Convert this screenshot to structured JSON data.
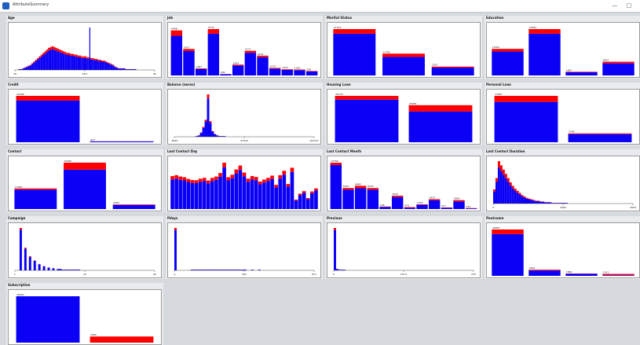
{
  "window": {
    "title": "AttributeSummary"
  },
  "colors": {
    "blue": "#0b00f5",
    "red": "#ff0000",
    "background": "#d6d9dd",
    "panel": "#e9ebee"
  },
  "panels": [
    {
      "title": "Age",
      "chart_data": {
        "type": "histogram",
        "x_ticks": [
          "18",
          "56.5",
          "95"
        ],
        "x_range": [
          18,
          95
        ],
        "values": [
          0,
          0,
          1,
          1,
          2,
          3,
          4,
          5,
          6,
          8,
          10,
          12,
          14,
          16,
          18,
          20,
          22,
          24,
          26,
          27,
          28,
          27,
          26,
          25,
          24,
          23,
          22,
          21,
          20,
          20,
          19,
          19,
          18,
          18,
          17,
          17,
          16,
          16,
          16,
          15,
          15,
          14,
          14,
          13,
          13,
          12,
          12,
          11,
          11,
          10,
          9,
          8,
          7,
          6,
          4,
          3,
          2,
          2,
          2,
          2,
          1,
          1,
          1,
          1,
          1,
          1,
          0,
          0,
          0,
          0,
          0,
          0,
          0,
          0,
          0,
          0
        ],
        "red_frac": 0.12,
        "spike": {
          "x": 59,
          "value": 50
        }
      }
    },
    {
      "title": "Job",
      "chart_data": {
        "type": "bar",
        "bars": [
          {
            "label": "9458",
            "value": 9458,
            "red_frac": 0.12
          },
          {
            "label": "5557",
            "value": 5557,
            "red_frac": 0.08
          },
          {
            "label": "1487",
            "value": 1487,
            "red_frac": 0.08
          },
          {
            "label": "9732",
            "value": 9732,
            "red_frac": 0.1
          },
          {
            "label": "290",
            "value": 290,
            "red_frac": 0.1
          },
          {
            "label": "2264",
            "value": 2264,
            "red_frac": 0.08
          },
          {
            "label": "5171",
            "value": 5171,
            "red_frac": 0.08
          },
          {
            "label": "4154",
            "value": 4154,
            "red_frac": 0.08
          },
          {
            "label": "1579",
            "value": 1579,
            "red_frac": 0.1
          },
          {
            "label": "1303",
            "value": 1303,
            "red_frac": 0.1
          },
          {
            "label": "1240",
            "value": 1240,
            "red_frac": 0.1
          },
          {
            "label": "938",
            "value": 938,
            "red_frac": 0.1
          }
        ]
      }
    },
    {
      "title": "Marital Status",
      "chart_data": {
        "type": "bar",
        "bars": [
          {
            "label": "27214",
            "value": 27214,
            "red_frac": 0.1
          },
          {
            "label": "12790",
            "value": 12790,
            "red_frac": 0.15
          },
          {
            "label": "5207",
            "value": 5207,
            "red_frac": 0.12
          }
        ]
      }
    },
    {
      "title": "Education",
      "chart_data": {
        "type": "bar",
        "bars": [
          {
            "label": "13301",
            "value": 13301,
            "red_frac": 0.1
          },
          {
            "label": "23202",
            "value": 23202,
            "red_frac": 0.1
          },
          {
            "label": "1857",
            "value": 1857,
            "red_frac": 0.12
          },
          {
            "label": "6851",
            "value": 6851,
            "red_frac": 0.12
          }
        ]
      }
    },
    {
      "title": "Credit",
      "chart_data": {
        "type": "bar",
        "bars": [
          {
            "label": "44396",
            "value": 44396,
            "red_frac": 0.1
          },
          {
            "label": "815",
            "value": 815,
            "red_frac": 0.08
          }
        ]
      }
    },
    {
      "title": "Balance (euros)",
      "chart_data": {
        "type": "histogram",
        "x_ticks": [
          "-8019",
          "47034",
          "102127"
        ],
        "x_range": [
          -8019,
          102127
        ],
        "values": [
          0,
          0,
          0,
          0,
          0,
          0,
          0,
          0,
          0,
          1,
          2,
          6,
          14,
          24,
          60,
          22,
          8,
          4,
          2,
          1,
          1,
          1,
          0,
          0,
          0,
          0,
          0,
          0,
          0,
          0,
          0,
          0,
          0,
          0,
          0,
          0,
          0,
          0,
          0,
          0,
          0,
          0,
          0,
          0,
          0,
          0,
          0,
          0,
          0,
          0,
          0,
          0,
          0,
          0,
          0,
          0,
          0,
          0,
          0,
          0
        ],
        "red_frac": 0.1
      }
    },
    {
      "title": "Housing Loan",
      "chart_data": {
        "type": "bar",
        "bars": [
          {
            "label": "25130",
            "value": 25130,
            "red_frac": 0.08
          },
          {
            "label": "20081",
            "value": 20081,
            "red_frac": 0.17
          }
        ]
      }
    },
    {
      "title": "Personal Loan",
      "chart_data": {
        "type": "bar",
        "bars": [
          {
            "label": "37967",
            "value": 37967,
            "red_frac": 0.13
          },
          {
            "label": "7244",
            "value": 7244,
            "red_frac": 0.08
          }
        ]
      }
    },
    {
      "title": "Contact",
      "chart_data": {
        "type": "bar",
        "bars": [
          {
            "label": "13020",
            "value": 13020,
            "red_frac": 0.06
          },
          {
            "label": "29285",
            "value": 29285,
            "red_frac": 0.15
          },
          {
            "label": "2906",
            "value": 2906,
            "red_frac": 0.1
          }
        ]
      }
    },
    {
      "title": "Last Contact Day",
      "chart_data": {
        "type": "bar",
        "show_labels": false,
        "bars": [
          {
            "value": 1500,
            "red_frac": 0.1
          },
          {
            "value": 1540,
            "red_frac": 0.1
          },
          {
            "value": 1480,
            "red_frac": 0.1
          },
          {
            "value": 1450,
            "red_frac": 0.1
          },
          {
            "value": 1370,
            "red_frac": 0.1
          },
          {
            "value": 1320,
            "red_frac": 0.1
          },
          {
            "value": 1310,
            "red_frac": 0.1
          },
          {
            "value": 1380,
            "red_frac": 0.1
          },
          {
            "value": 1420,
            "red_frac": 0.1
          },
          {
            "value": 1300,
            "red_frac": 0.1
          },
          {
            "value": 1420,
            "red_frac": 0.1
          },
          {
            "value": 1480,
            "red_frac": 0.1
          },
          {
            "value": 1640,
            "red_frac": 0.1
          },
          {
            "value": 2110,
            "red_frac": 0.1
          },
          {
            "value": 1450,
            "red_frac": 0.1
          },
          {
            "value": 1560,
            "red_frac": 0.1
          },
          {
            "value": 1800,
            "red_frac": 0.1
          },
          {
            "value": 1980,
            "red_frac": 0.1
          },
          {
            "value": 1660,
            "red_frac": 0.1
          },
          {
            "value": 1380,
            "red_frac": 0.1
          },
          {
            "value": 1500,
            "red_frac": 0.1
          },
          {
            "value": 1460,
            "red_frac": 0.1
          },
          {
            "value": 1250,
            "red_frac": 0.1
          },
          {
            "value": 1340,
            "red_frac": 0.1
          },
          {
            "value": 1420,
            "red_frac": 0.1
          },
          {
            "value": 1520,
            "red_frac": 0.1
          },
          {
            "value": 1100,
            "red_frac": 0.1
          },
          {
            "value": 1540,
            "red_frac": 0.1
          },
          {
            "value": 1740,
            "red_frac": 0.1
          },
          {
            "value": 1140,
            "red_frac": 0.1
          },
          {
            "value": 1880,
            "red_frac": 0.1
          },
          {
            "value": 430,
            "red_frac": 0.1
          },
          {
            "value": 700,
            "red_frac": 0.1
          },
          {
            "value": 815,
            "red_frac": 0.1
          },
          {
            "value": 500,
            "red_frac": 0.1
          },
          {
            "value": 800,
            "red_frac": 0.1
          },
          {
            "value": 940,
            "red_frac": 0.1
          }
        ]
      }
    },
    {
      "title": "Last Contact Month",
      "chart_data": {
        "type": "bar",
        "bars": [
          {
            "label": "13766",
            "value": 13766,
            "red_frac": 0.05
          },
          {
            "label": "6247",
            "value": 6247,
            "red_frac": 0.08
          },
          {
            "label": "6895",
            "value": 6895,
            "red_frac": 0.1
          },
          {
            "label": "6247",
            "value": 6247,
            "red_frac": 0.08
          },
          {
            "label": "748",
            "value": 748,
            "red_frac": 0.15
          },
          {
            "label": "3970",
            "value": 3970,
            "red_frac": 0.1
          },
          {
            "label": "579",
            "value": 579,
            "red_frac": 0.3
          },
          {
            "label": "1403",
            "value": 1403,
            "red_frac": 0.1
          },
          {
            "label": "2932",
            "value": 2932,
            "red_frac": 0.1
          },
          {
            "label": "477",
            "value": 477,
            "red_frac": 0.2
          },
          {
            "label": "2649",
            "value": 2649,
            "red_frac": 0.15
          },
          {
            "label": "214",
            "value": 214,
            "red_frac": 0.3
          }
        ]
      }
    },
    {
      "title": "Last Contact Duration",
      "chart_data": {
        "type": "histogram",
        "x_ticks": [
          "0",
          "2459",
          "4918"
        ],
        "x_range": [
          0,
          4918
        ],
        "values": [
          20,
          36,
          60,
          54,
          48,
          42,
          36,
          30,
          25,
          21,
          18,
          15,
          12,
          10,
          8,
          7,
          6,
          5,
          4,
          4,
          3,
          3,
          2,
          2,
          2,
          1,
          1,
          1,
          1,
          1,
          1,
          1,
          0,
          0,
          0,
          0,
          0,
          0,
          0,
          0,
          0,
          0,
          0,
          0,
          0,
          0,
          0,
          0,
          0,
          0,
          0,
          0,
          0,
          0,
          0,
          0,
          0,
          0,
          0,
          0
        ],
        "red_frac": 0.15
      }
    },
    {
      "title": "Campaign",
      "chart_data": {
        "type": "histogram",
        "x_ticks": [
          "1",
          "32",
          "63"
        ],
        "x_range": [
          1,
          63
        ],
        "values": [
          0,
          0,
          60,
          0,
          32,
          0,
          20,
          0,
          14,
          0,
          9,
          0,
          6,
          0,
          4,
          0,
          3,
          0,
          2,
          2,
          1,
          1,
          1,
          1,
          1,
          1,
          1,
          1,
          0,
          0,
          0,
          0,
          0,
          0,
          0,
          0,
          0,
          0,
          0,
          0,
          0,
          0,
          0,
          0,
          0,
          0,
          0,
          0,
          0,
          0,
          0,
          0,
          0,
          0,
          0,
          0,
          0,
          0,
          0,
          0
        ],
        "red_frac": 0.04
      }
    },
    {
      "title": "Pdays",
      "chart_data": {
        "type": "histogram",
        "x_ticks": [
          "-1",
          "435",
          "871"
        ],
        "x_range": [
          -1,
          871
        ],
        "values": [
          60,
          0,
          0,
          0,
          0,
          0,
          0,
          1,
          1,
          1,
          1,
          1,
          1,
          1,
          1,
          1,
          1,
          1,
          1,
          1,
          1,
          1,
          1,
          1,
          1,
          1,
          1,
          1,
          1,
          1,
          1,
          0,
          0,
          1,
          0,
          0,
          1,
          0,
          0,
          0,
          0,
          0,
          0,
          0,
          0,
          0,
          0,
          0,
          0,
          0,
          0,
          0,
          0,
          0,
          0,
          0,
          0,
          0,
          0,
          0
        ],
        "red_frac": 0.05
      }
    },
    {
      "title": "Previous",
      "chart_data": {
        "type": "histogram",
        "x_ticks": [
          "0",
          "137.5",
          "275"
        ],
        "x_range": [
          0,
          275
        ],
        "values": [
          60,
          2,
          1,
          1,
          1,
          0,
          0,
          0,
          0,
          0,
          0,
          0,
          0,
          0,
          0,
          0,
          0,
          0,
          0,
          0,
          0,
          0,
          0,
          0,
          0,
          0,
          0,
          0,
          0,
          0,
          0,
          0,
          0,
          0,
          0,
          0,
          0,
          0,
          0,
          0,
          0,
          0,
          0,
          0,
          0,
          0,
          0,
          0,
          0,
          0,
          0,
          0,
          0,
          0,
          0,
          0,
          0,
          0,
          0,
          0
        ],
        "red_frac": 0.05
      }
    },
    {
      "title": "Poutcome",
      "chart_data": {
        "type": "bar",
        "bars": [
          {
            "label": "36959",
            "value": 36959,
            "red_frac": 0.1
          },
          {
            "label": "4901",
            "value": 4901,
            "red_frac": 0.12
          },
          {
            "label": "1840",
            "value": 1840,
            "red_frac": 0.12
          },
          {
            "label": "1511",
            "value": 1511,
            "red_frac": 0.65
          }
        ]
      }
    },
    {
      "title": "Subscription",
      "chart_data": {
        "type": "bar",
        "bars": [
          {
            "label": "39922",
            "value": 39922,
            "red_frac": 0
          },
          {
            "label": "5289",
            "value": 5289,
            "red_frac": 1
          }
        ]
      }
    }
  ]
}
